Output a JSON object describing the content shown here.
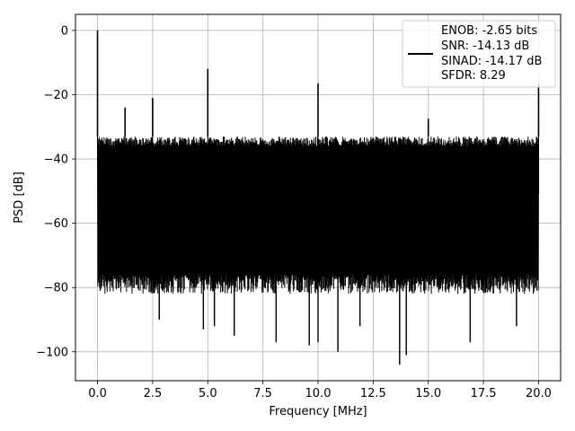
{
  "chart_data": {
    "type": "line",
    "title": "",
    "xlabel": "Frequency [MHz]",
    "ylabel": "PSD [dB]",
    "xlim": [
      -1,
      21
    ],
    "ylim": [
      -109,
      5
    ],
    "xticks": [
      0.0,
      2.5,
      5.0,
      7.5,
      10.0,
      12.5,
      15.0,
      17.5,
      20.0
    ],
    "xtick_labels": [
      "0.0",
      "2.5",
      "5.0",
      "7.5",
      "10.0",
      "12.5",
      "15.0",
      "17.5",
      "20.0"
    ],
    "yticks": [
      0,
      -20,
      -40,
      -60,
      -80,
      -100
    ],
    "ytick_labels": [
      "0",
      "−20",
      "−40",
      "−60",
      "−80",
      "−100"
    ],
    "grid": true,
    "legend_position": "top-right",
    "legend_lines": [
      "ENOB: -2.65 bits",
      "SNR: -14.13 dB",
      "SINAD: -14.17 dB",
      "SFDR: 8.29"
    ],
    "series": [
      {
        "color": "#000000",
        "noise_band_db": [
          -76,
          -33
        ],
        "noise_floor_mean_db": -55,
        "peaks": [
          {
            "x": 0.0,
            "y": 0
          },
          {
            "x": 1.25,
            "y": -24
          },
          {
            "x": 2.5,
            "y": -21
          },
          {
            "x": 5.0,
            "y": -12
          },
          {
            "x": 10.0,
            "y": -16.5
          },
          {
            "x": 15.0,
            "y": -27.5
          },
          {
            "x": 20.0,
            "y": -16.5
          }
        ],
        "dips": [
          {
            "x": 2.8,
            "y": -90
          },
          {
            "x": 4.8,
            "y": -93
          },
          {
            "x": 5.3,
            "y": -92
          },
          {
            "x": 6.2,
            "y": -95
          },
          {
            "x": 8.1,
            "y": -97
          },
          {
            "x": 9.6,
            "y": -98
          },
          {
            "x": 10.0,
            "y": -97
          },
          {
            "x": 10.9,
            "y": -100
          },
          {
            "x": 11.9,
            "y": -92
          },
          {
            "x": 13.7,
            "y": -104
          },
          {
            "x": 14.0,
            "y": -101
          },
          {
            "x": 16.9,
            "y": -97
          },
          {
            "x": 19.0,
            "y": -92
          }
        ]
      }
    ]
  }
}
